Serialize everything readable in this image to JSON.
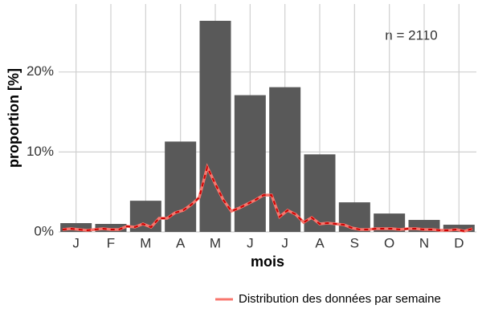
{
  "chart_data": {
    "type": "bar",
    "x_label": "mois",
    "y_label": "proportion [%]",
    "annotation": "n = 2110",
    "categories": [
      "J",
      "F",
      "M",
      "A",
      "M",
      "J",
      "J",
      "A",
      "S",
      "O",
      "N",
      "D"
    ],
    "values": [
      1.1,
      1.0,
      3.9,
      11.3,
      26.4,
      17.1,
      18.1,
      9.7,
      3.7,
      2.3,
      1.5,
      0.9
    ],
    "color": "#595959",
    "line": {
      "name": "Distribution des données par semaine",
      "color": "#f8766d",
      "overlay_color": "#cc0000",
      "values": [
        0.3,
        0.4,
        0.3,
        0.2,
        0.3,
        0.4,
        0.3,
        0.3,
        0.7,
        0.6,
        1.0,
        0.6,
        1.7,
        1.7,
        2.4,
        2.7,
        3.4,
        4.3,
        8.1,
        6.0,
        4.0,
        2.6,
        3.0,
        3.5,
        4.0,
        4.6,
        4.6,
        1.9,
        2.7,
        2.2,
        1.2,
        1.8,
        1.0,
        1.1,
        1.0,
        0.9,
        0.5,
        0.3,
        0.3,
        0.4,
        0.4,
        0.4,
        0.3,
        0.4,
        0.4,
        0.3,
        0.3,
        0.2,
        0.2,
        0.3,
        0.1,
        0.4
      ]
    },
    "ylim": [
      0,
      28.5
    ],
    "yticks": [
      {
        "value": 0,
        "label": "0%"
      },
      {
        "value": 10,
        "label": "10%"
      },
      {
        "value": 20,
        "label": "20%"
      }
    ],
    "grid": true,
    "legend": "bottom-right"
  }
}
